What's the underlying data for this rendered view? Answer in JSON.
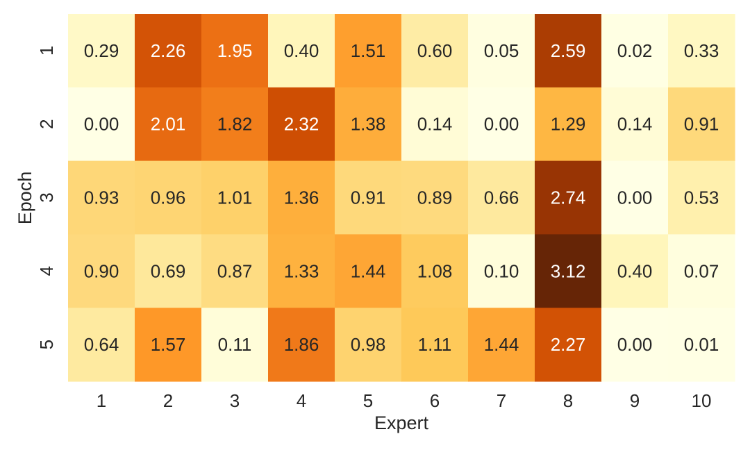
{
  "chart_data": {
    "type": "heatmap",
    "xlabel": "Expert",
    "ylabel": "Epoch",
    "x_categories": [
      "1",
      "2",
      "3",
      "4",
      "5",
      "6",
      "7",
      "8",
      "9",
      "10"
    ],
    "y_categories": [
      "1",
      "2",
      "3",
      "4",
      "5"
    ],
    "values": [
      [
        0.29,
        2.26,
        1.95,
        0.4,
        1.51,
        0.6,
        0.05,
        2.59,
        0.02,
        0.33
      ],
      [
        0.0,
        2.01,
        1.82,
        2.32,
        1.38,
        0.14,
        0.0,
        1.29,
        0.14,
        0.91
      ],
      [
        0.93,
        0.96,
        1.01,
        1.36,
        0.91,
        0.89,
        0.66,
        2.74,
        0.0,
        0.53
      ],
      [
        0.9,
        0.69,
        0.87,
        1.33,
        1.44,
        1.08,
        0.1,
        3.12,
        0.4,
        0.07
      ],
      [
        0.64,
        1.57,
        0.11,
        1.86,
        0.98,
        1.11,
        1.44,
        2.27,
        0.0,
        0.01
      ]
    ],
    "value_range": [
      0,
      3.12
    ],
    "colormap": "YlOrBr",
    "colorbar": false,
    "grid": false,
    "legend": "none",
    "annotation_format": "0.00"
  }
}
